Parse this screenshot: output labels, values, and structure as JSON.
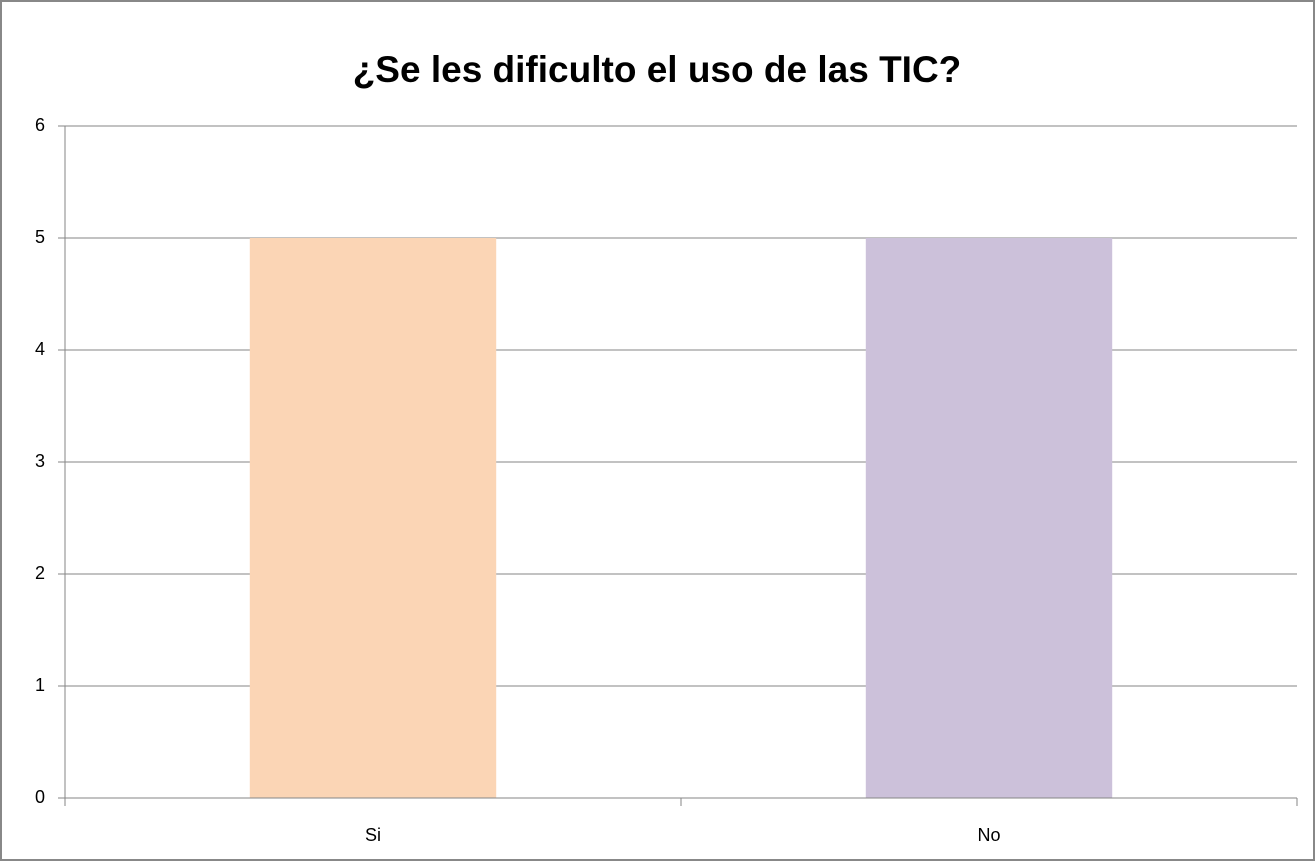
{
  "chart_data": {
    "type": "bar",
    "title": "¿Se les dificulto el uso de las TIC?",
    "categories": [
      "Si",
      "No"
    ],
    "values": [
      5,
      5
    ],
    "colors": [
      "#fbd5b5",
      "#ccc1da"
    ],
    "ylim": [
      0,
      6
    ],
    "yticks": [
      0,
      1,
      2,
      3,
      4,
      5,
      6
    ],
    "grid": true
  }
}
